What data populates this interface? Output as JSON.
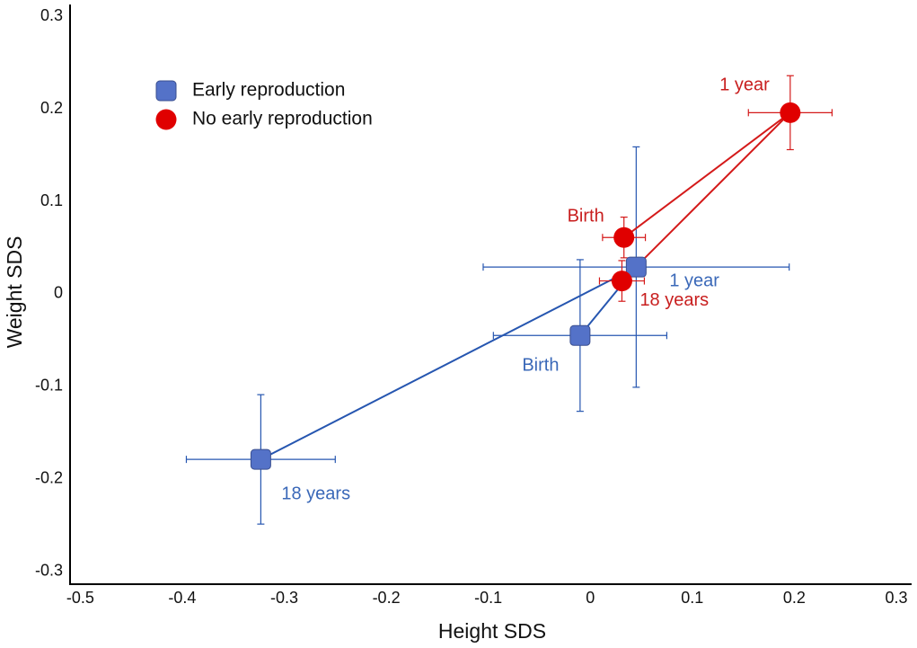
{
  "chart_data": {
    "type": "scatter",
    "x_label": "Height SDS",
    "y_label": "Weight SDS",
    "xlim": [
      -0.51,
      0.315
    ],
    "ylim": [
      -0.314,
      0.313
    ],
    "xticks": [
      -0.5,
      -0.4,
      -0.3,
      -0.2,
      -0.1,
      0,
      0.1,
      0.2,
      0.3
    ],
    "yticks": [
      0.3,
      0.2,
      0.1,
      0,
      -0.1,
      -0.2,
      -0.3
    ],
    "grid": false,
    "legend": "upper left",
    "series": [
      {
        "name": "Early reproduction",
        "marker": "square",
        "color": "#5472c8",
        "line_color": "#2656b0",
        "label_color": "#3a68b8",
        "labels": [
          "Birth",
          "1 year",
          "18 years"
        ],
        "x": [
          -0.01,
          0.045,
          -0.323
        ],
        "values": [
          -0.045,
          0.029,
          -0.179
        ],
        "xerr": [
          0.085,
          0.15,
          0.073
        ],
        "yerr": [
          0.082,
          0.13,
          0.07
        ]
      },
      {
        "name": "No early reproduction",
        "marker": "circle",
        "color": "#e00000",
        "line_color": "#d41a1a",
        "label_color": "#c81e1e",
        "labels": [
          "Birth",
          "1 year",
          "18 years"
        ],
        "x": [
          0.033,
          0.196,
          0.031
        ],
        "values": [
          0.061,
          0.196,
          0.014
        ],
        "xerr": [
          0.021,
          0.041,
          0.022
        ],
        "yerr": [
          0.022,
          0.04,
          0.022
        ]
      }
    ]
  }
}
